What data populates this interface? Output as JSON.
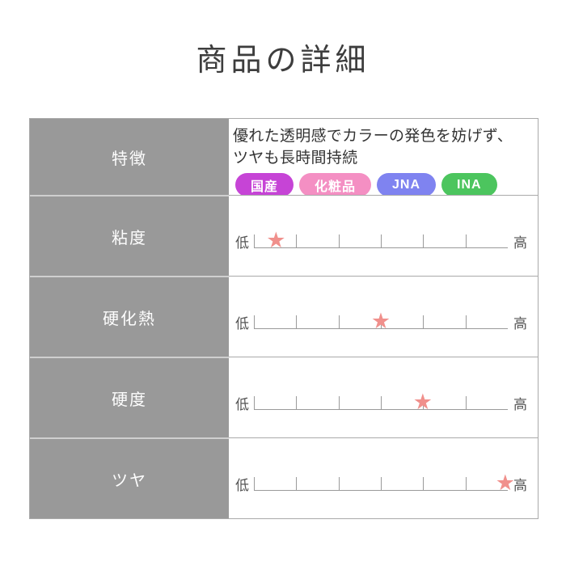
{
  "page": {
    "title": "商品の詳細"
  },
  "feature": {
    "label": "特徴",
    "lines": [
      "優れた透明感でカラーの発色を妨げず、",
      "ツヤも長時間持続"
    ],
    "badges": [
      {
        "label": "国産",
        "color": "#c644d6"
      },
      {
        "label": "化粧品",
        "color": "#f48fc3"
      },
      {
        "label": "JNA",
        "color": "#7f83f0"
      },
      {
        "label": "INA",
        "color": "#4cc55e"
      }
    ]
  },
  "scale": {
    "low_label": "低",
    "high_label": "高",
    "segments": 6,
    "star_glyph": "★",
    "star_color": "#f0908c"
  },
  "ratings": [
    {
      "label": "粘度",
      "level": 0.5,
      "max": 6,
      "value_percent": 8.7
    },
    {
      "label": "硬化熱",
      "level": 3,
      "max": 6,
      "value_percent": 50
    },
    {
      "label": "硬度",
      "level": 4,
      "max": 6,
      "value_percent": 66.5
    },
    {
      "label": "ツヤ",
      "level": 6,
      "max": 6,
      "value_percent": 99
    }
  ],
  "colors": {
    "label_column_bg": "#999999",
    "table_border": "#aaaaaa",
    "body_text": "#333333",
    "star": "#f0908c"
  }
}
